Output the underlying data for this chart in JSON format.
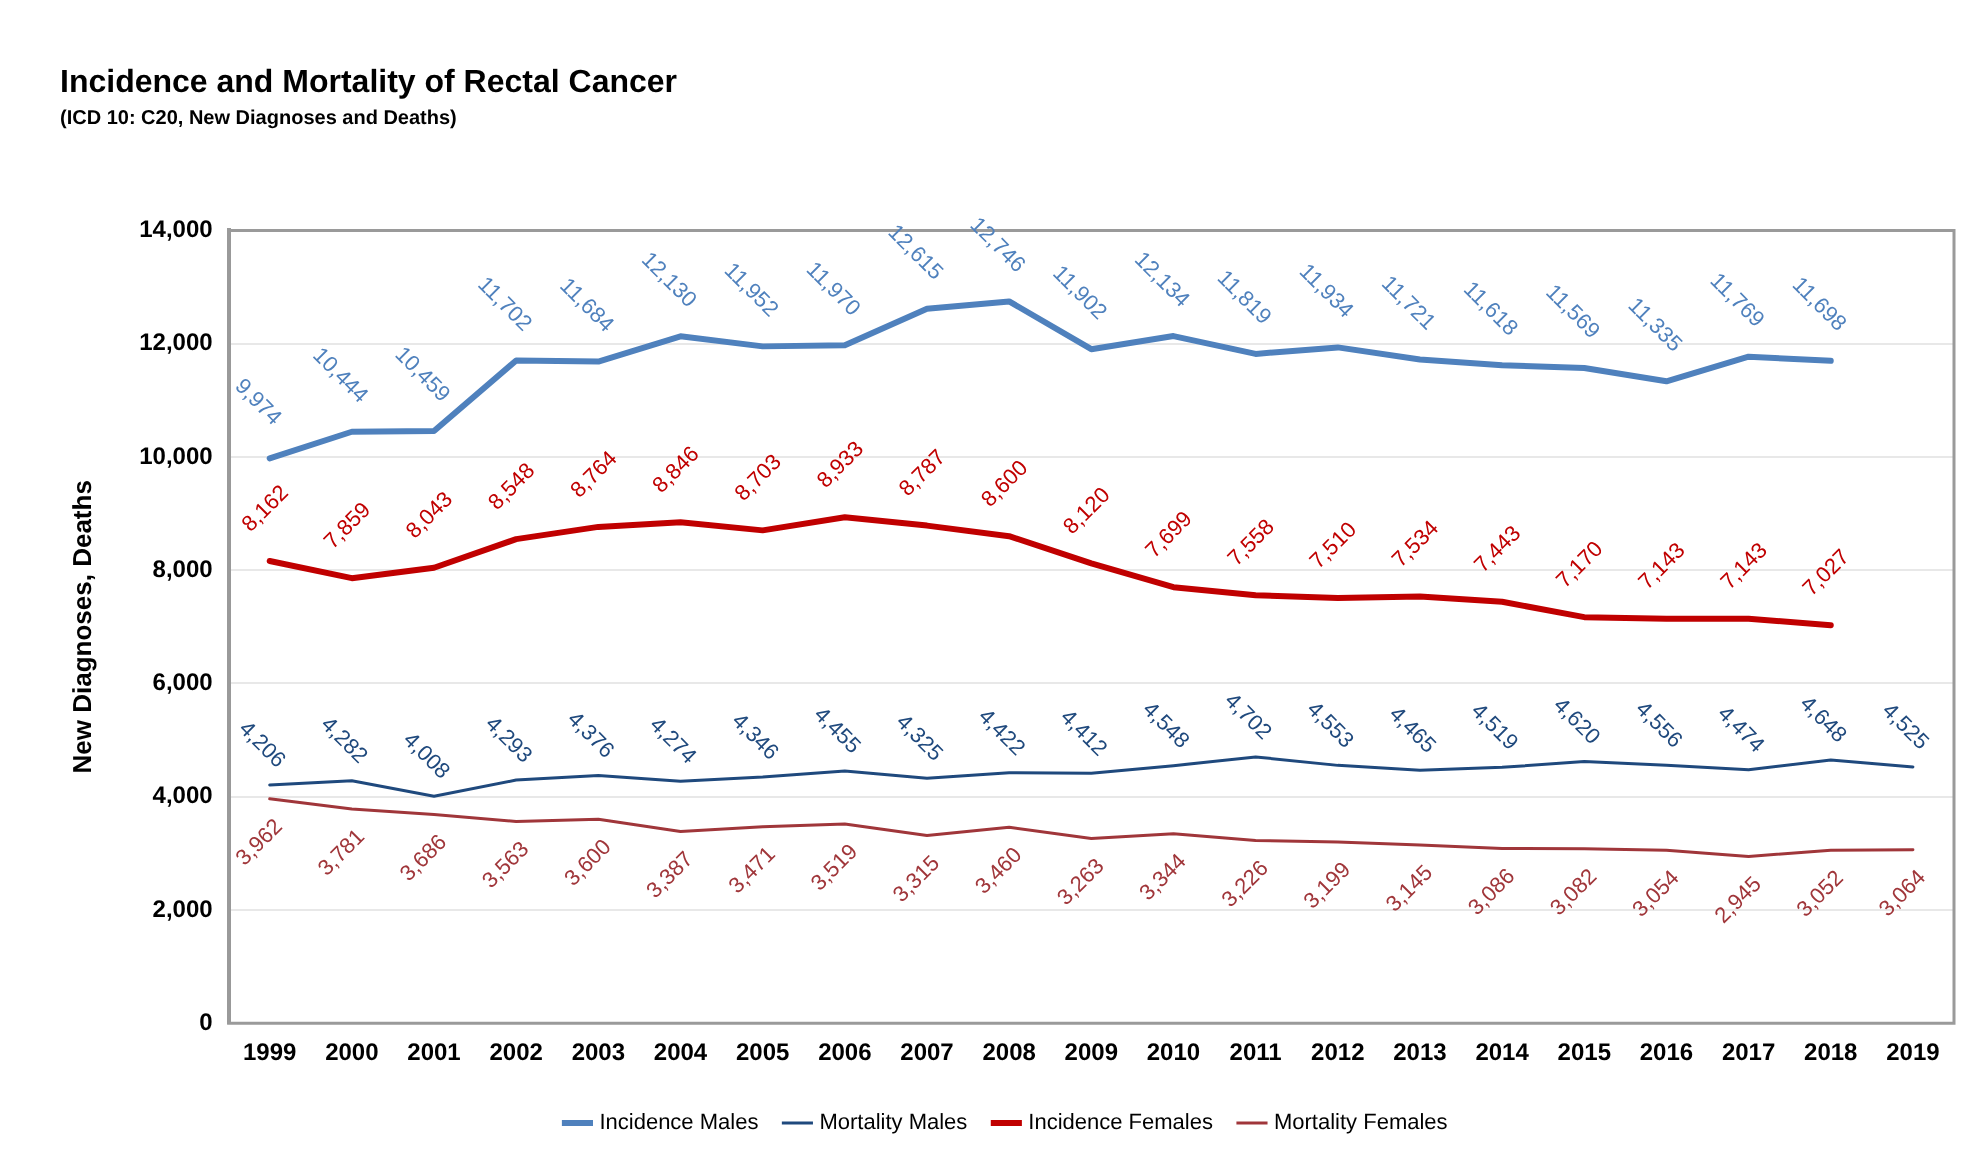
{
  "chart_data": {
    "type": "line",
    "title": "Incidence and Mortality of Rectal Cancer",
    "subtitle": "(ICD 10: C20, New Diagnoses and Deaths)",
    "ylabel": "New Diagnoses, Deaths",
    "categories": [
      "1999",
      "2000",
      "2001",
      "2002",
      "2003",
      "2004",
      "2005",
      "2006",
      "2007",
      "2008",
      "2009",
      "2010",
      "2011",
      "2012",
      "2013",
      "2014",
      "2015",
      "2016",
      "2017",
      "2018",
      "2019"
    ],
    "series": [
      {
        "name": "Incidence Males",
        "color": "#4f81bd",
        "values": [
          9974,
          10444,
          10459,
          11702,
          11684,
          12130,
          11952,
          11970,
          12615,
          12746,
          11902,
          12134,
          11819,
          11934,
          11721,
          11618,
          11569,
          11335,
          11769,
          11698,
          null
        ],
        "value_labels": [
          "9,974",
          "10,444",
          "10,459",
          "11,702",
          "11,684",
          "12,130",
          "11,952",
          "11,970",
          "12,615",
          "12,746",
          "11,902",
          "12,134",
          "11,819",
          "11,934",
          "11,721",
          "11,618",
          "11,569",
          "11,335",
          "11,769",
          "11,698",
          null
        ]
      },
      {
        "name": "Mortality Males",
        "color": "#1f497d",
        "values": [
          4206,
          4282,
          4008,
          4293,
          4376,
          4274,
          4346,
          4455,
          4325,
          4422,
          4412,
          4548,
          4702,
          4553,
          4465,
          4519,
          4620,
          4556,
          4474,
          4648,
          4525
        ],
        "value_labels": [
          "4,206",
          "4,282",
          "4,008",
          "4,293",
          "4,376",
          "4,274",
          "4,346",
          "4,455",
          "4,325",
          "4,422",
          "4,412",
          "4,548",
          "4,702",
          "4,553",
          "4,465",
          "4,519",
          "4,620",
          "4,556",
          "4,474",
          "4,648",
          "4,525"
        ]
      },
      {
        "name": "Incidence Females",
        "color": "#c00000",
        "values": [
          8162,
          7859,
          8043,
          8548,
          8764,
          8846,
          8703,
          8933,
          8787,
          8600,
          8120,
          7699,
          7558,
          7510,
          7534,
          7443,
          7170,
          7143,
          7143,
          7027,
          null
        ],
        "value_labels": [
          "8,162",
          "7,859",
          "8,043",
          "8,548",
          "8,764",
          "8,846",
          "8,703",
          "8,933",
          "8,787",
          "8,600",
          "8,120",
          "7,699",
          "7,558",
          "7,510",
          "7,534",
          "7,443",
          "7,170",
          "7,143",
          "7,143",
          "7,027",
          null
        ]
      },
      {
        "name": "Mortality Females",
        "color": "#a0363a",
        "values": [
          3962,
          3781,
          3686,
          3563,
          3600,
          3387,
          3471,
          3519,
          3315,
          3460,
          3263,
          3344,
          3226,
          3199,
          3145,
          3086,
          3082,
          3054,
          2945,
          3052,
          3064
        ],
        "value_labels": [
          "3,962",
          "3,781",
          "3,686",
          "3,563",
          "3,600",
          "3,387",
          "3,471",
          "3,519",
          "3,315",
          "3,460",
          "3,263",
          "3,344",
          "3,226",
          "3,199",
          "3,145",
          "3,086",
          "3,082",
          "3,054",
          "2,945",
          "3,052",
          "3,064"
        ]
      }
    ],
    "ylim": [
      0,
      14000
    ],
    "yticks": [
      0,
      {
        "value": 2000,
        "label": "2,000"
      },
      {
        "value": 4000,
        "label": "4,000"
      },
      {
        "value": 6000,
        "label": "6,000"
      },
      {
        "value": 8000,
        "label": "8,000"
      },
      {
        "value": 10000,
        "label": "10,000"
      },
      {
        "value": 12000,
        "label": "12,000"
      },
      {
        "value": 14000,
        "label": "14,000"
      }
    ],
    "grid": "y",
    "legend": "bottom",
    "marker": "none",
    "line_style": "solid"
  }
}
